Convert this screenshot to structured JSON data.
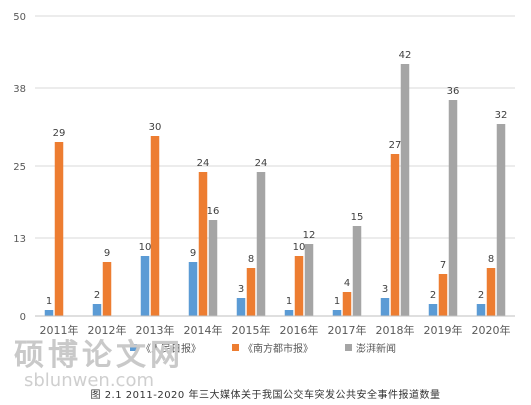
{
  "chart_data": {
    "type": "bar",
    "categories": [
      "2011年",
      "2012年",
      "2013年",
      "2014年",
      "2015年",
      "2016年",
      "2017年",
      "2018年",
      "2019年",
      "2020年"
    ],
    "series": [
      {
        "name": "《人民日报》",
        "values": [
          1,
          2,
          10,
          9,
          3,
          1,
          1,
          3,
          2,
          2
        ]
      },
      {
        "name": "《南方都市报》",
        "values": [
          29,
          9,
          30,
          24,
          8,
          10,
          4,
          27,
          7,
          8
        ]
      },
      {
        "name": "澎湃新闻",
        "values": [
          0,
          0,
          0,
          16,
          24,
          12,
          15,
          42,
          36,
          32
        ]
      }
    ],
    "yticks": [
      "0",
      "13",
      "25",
      "38",
      "50"
    ],
    "ylim": [
      0,
      50
    ],
    "grid": true,
    "legend": "bottom",
    "colors": [
      "#5b9bd5",
      "#ed7d31",
      "#a5a5a5"
    ]
  },
  "caption": "图 2.1 2011-2020 年三大媒体关于我国公交车突发公共安全事件报道数量",
  "watermark": {
    "cn": "硕博论文网",
    "en": "sblunwen.com"
  }
}
